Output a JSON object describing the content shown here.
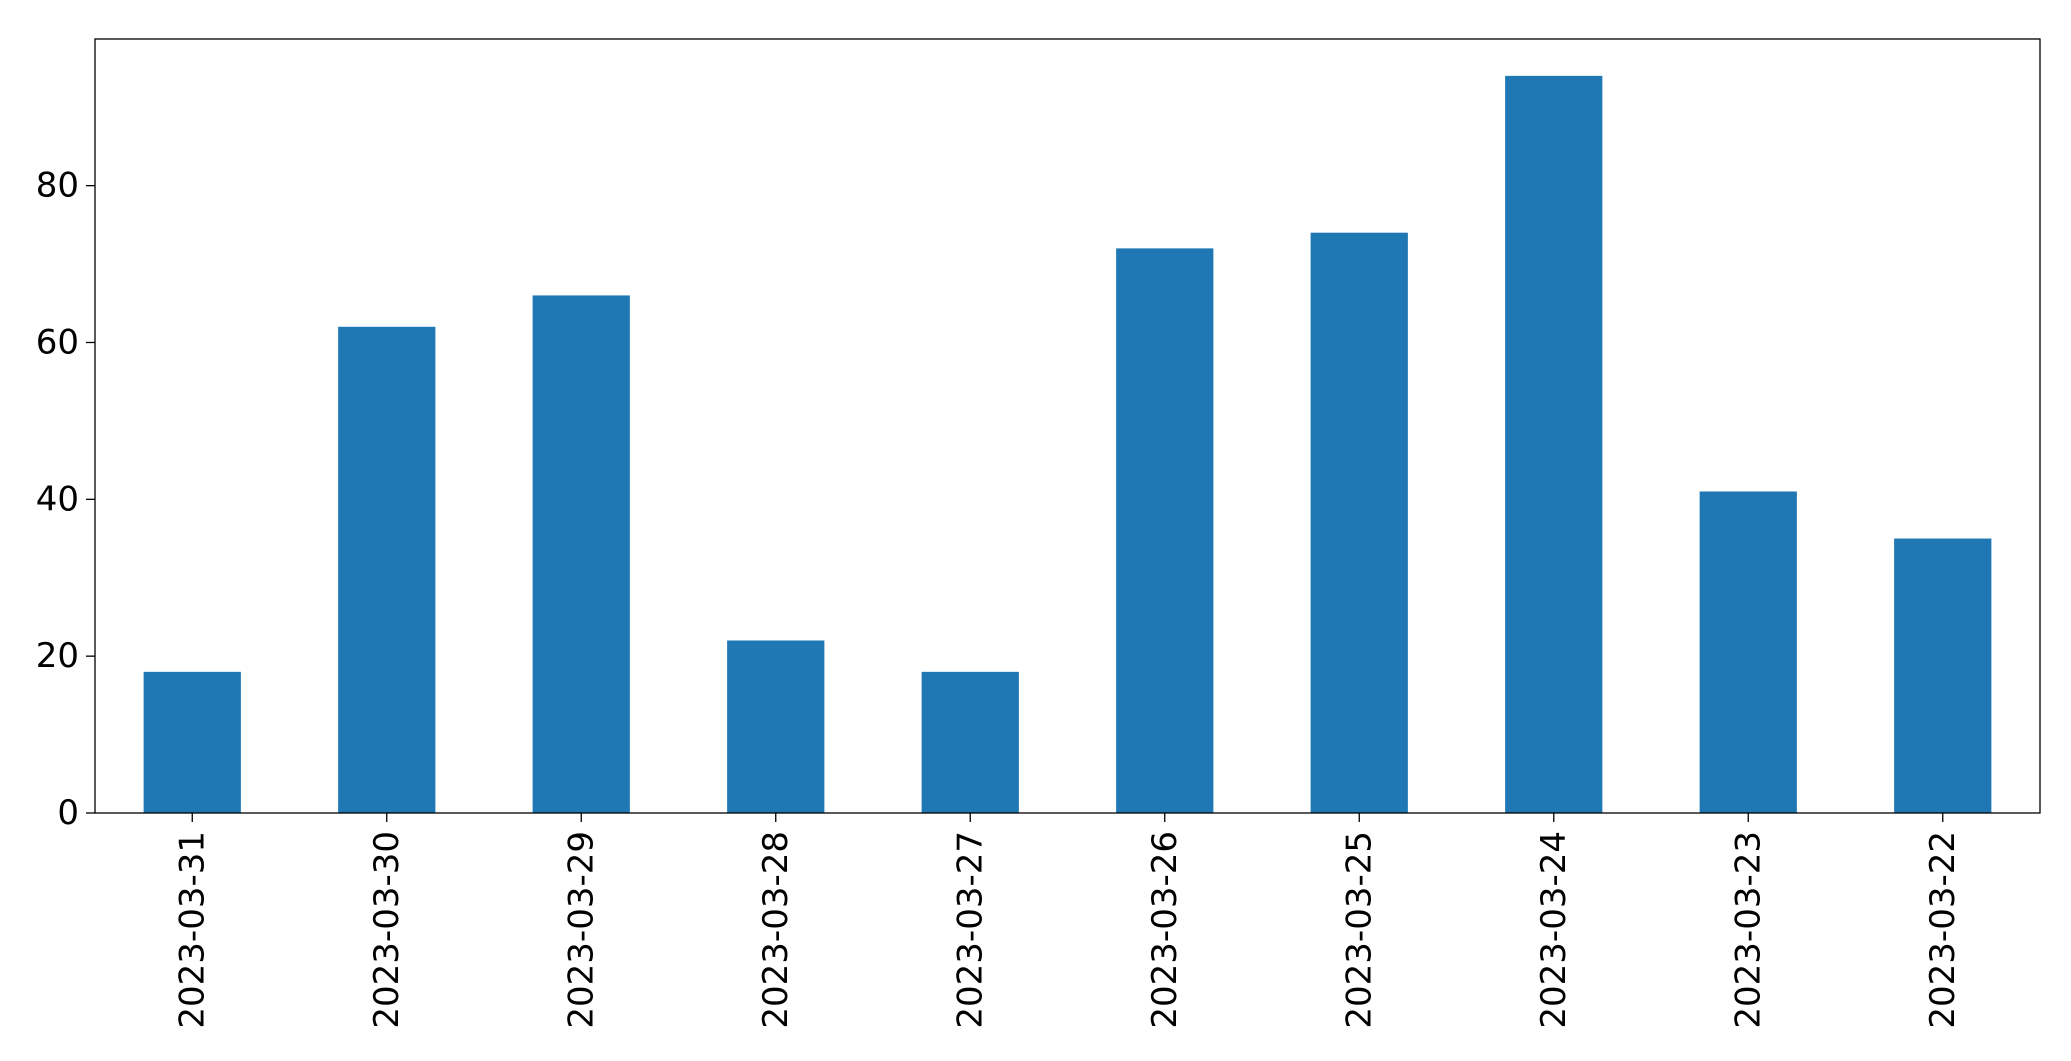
{
  "chart_data": {
    "type": "bar",
    "title": "",
    "xlabel": "",
    "ylabel": "",
    "categories": [
      "2023-03-31",
      "2023-03-30",
      "2023-03-29",
      "2023-03-28",
      "2023-03-27",
      "2023-03-26",
      "2023-03-25",
      "2023-03-24",
      "2023-03-23",
      "2023-03-22"
    ],
    "values": [
      18,
      62,
      66,
      22,
      18,
      72,
      74,
      94,
      41,
      35
    ],
    "ylim": [
      0,
      98.7
    ],
    "yticks": [
      0,
      20,
      40,
      60,
      80
    ],
    "bar_color": "#1f77b4",
    "grid": false,
    "legend": "none"
  }
}
